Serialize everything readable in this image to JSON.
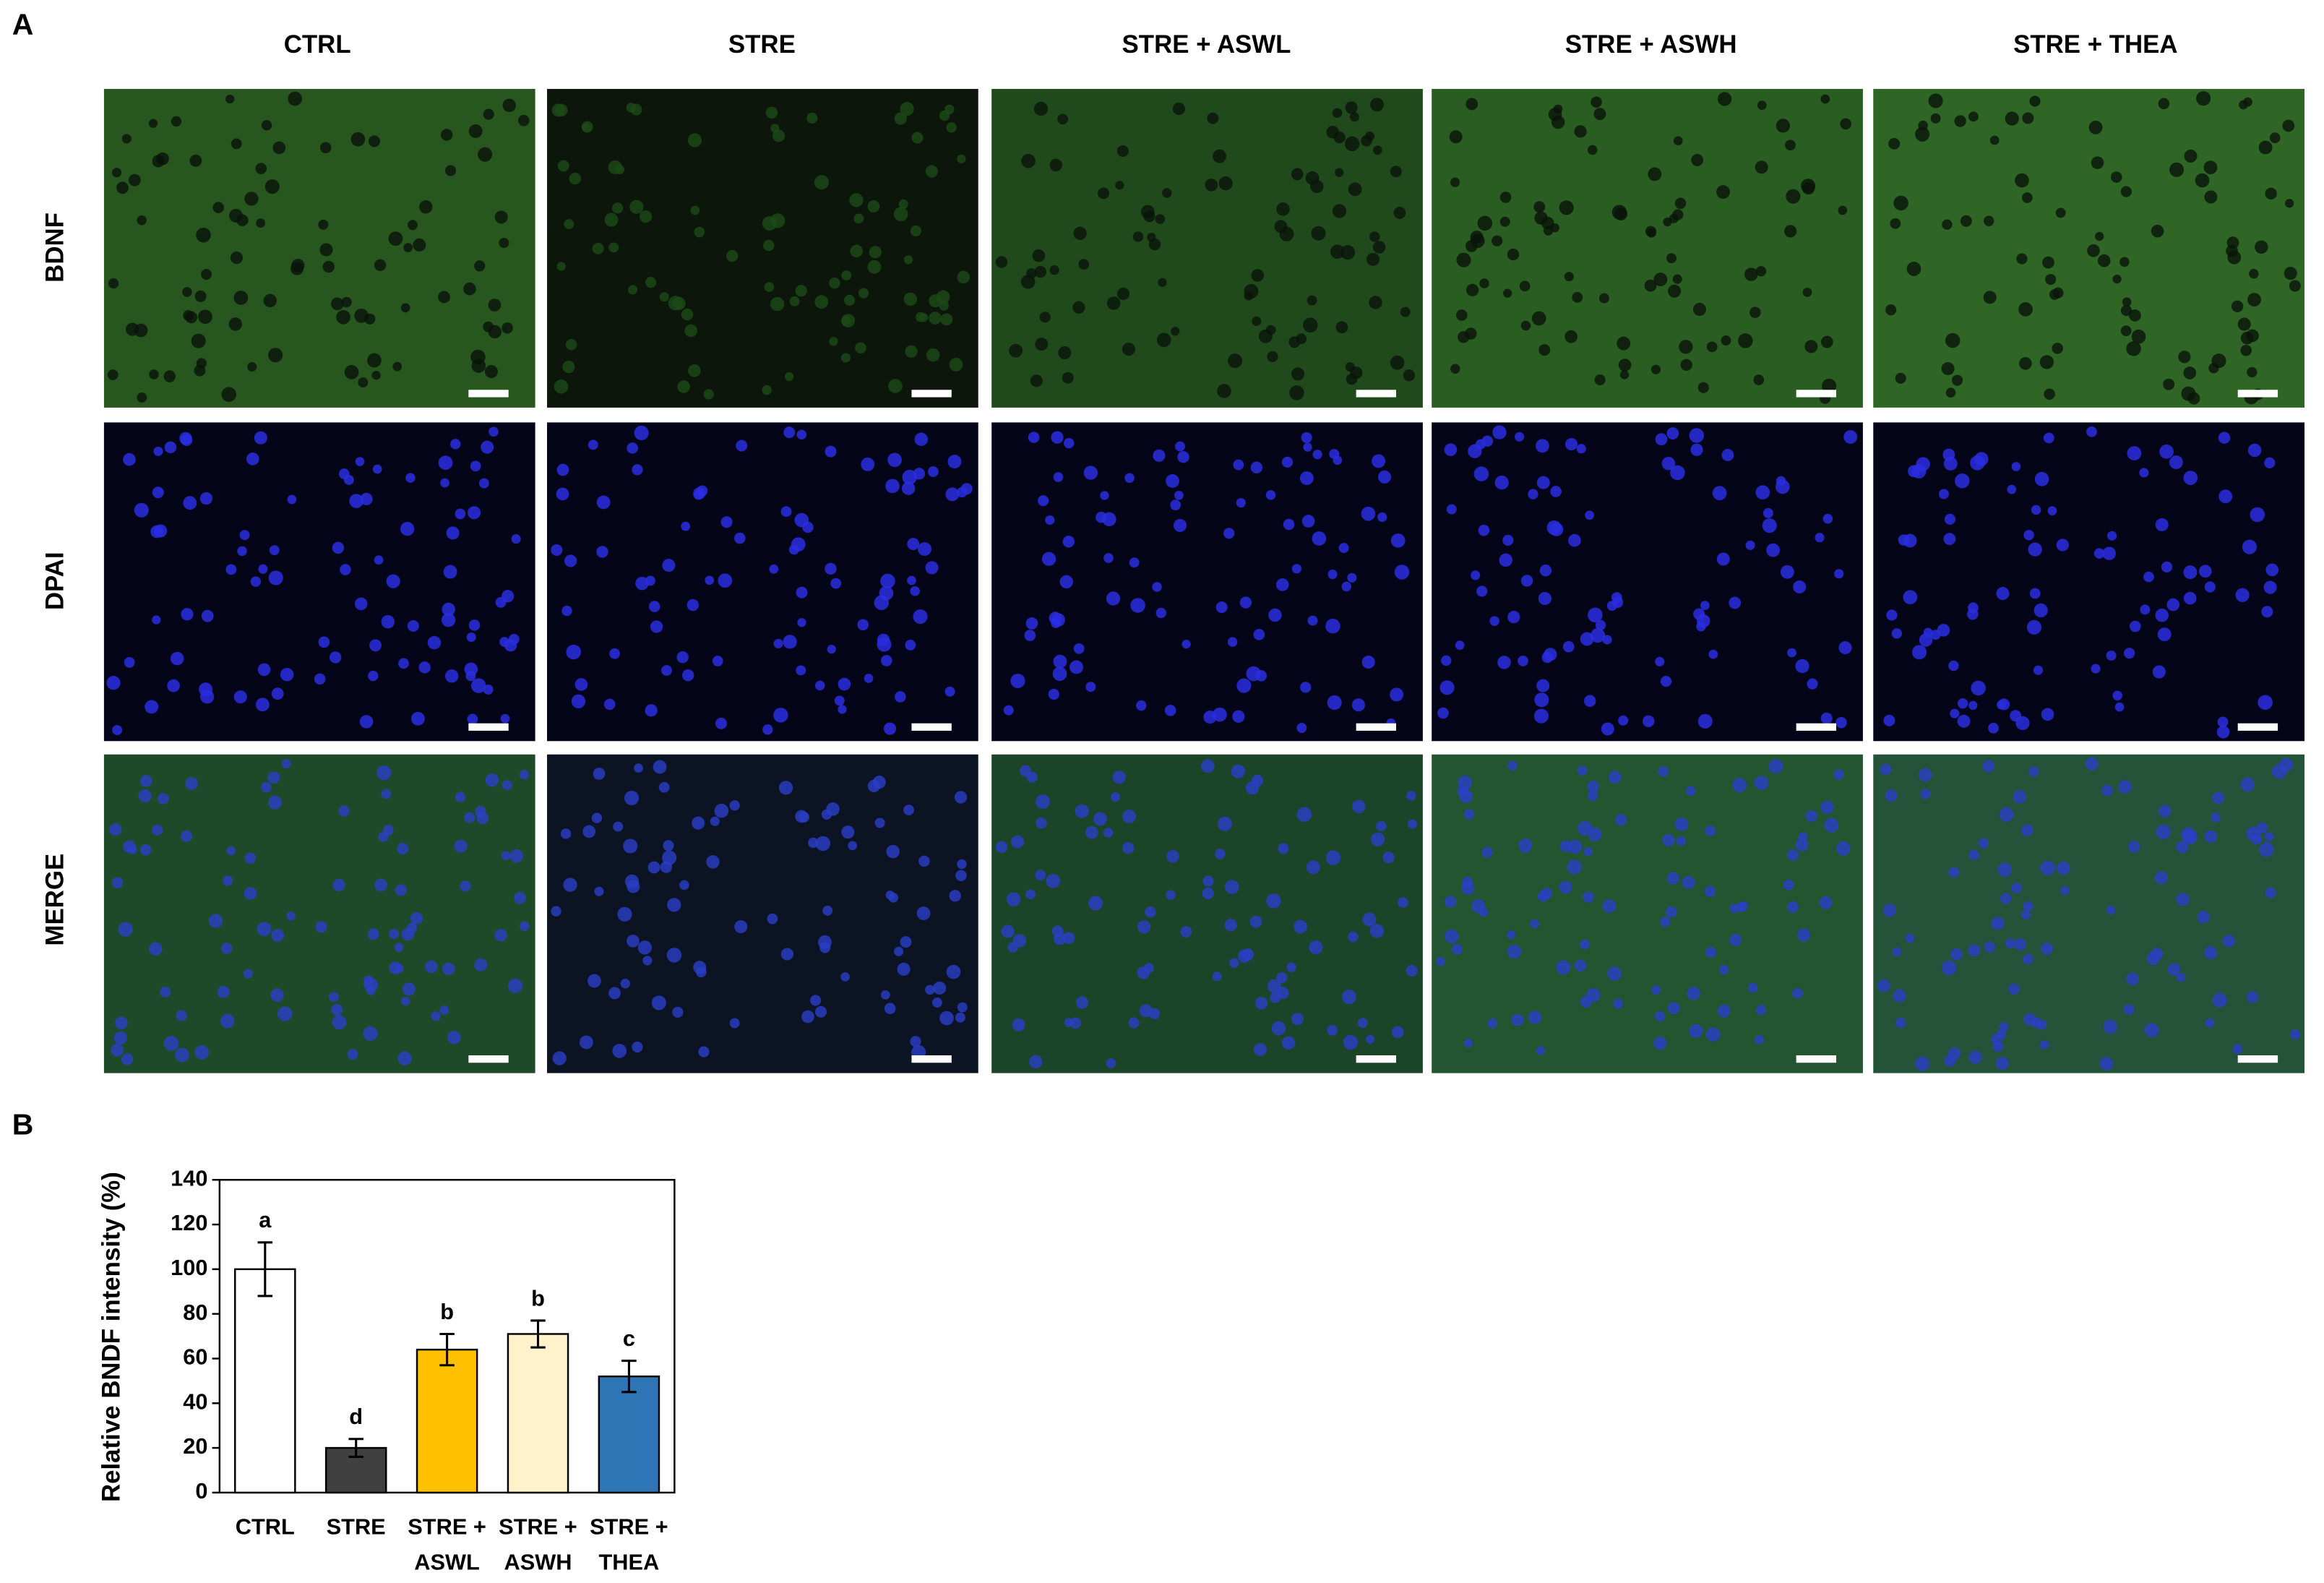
{
  "figure": {
    "panel_a_label": "A",
    "panel_b_label": "B",
    "columns": [
      "CTRL",
      "STRE",
      "STRE + ASWL",
      "STRE + ASWH",
      "STRE + THEA"
    ],
    "rows": [
      "BDNF",
      "DPAI",
      "MERGE"
    ]
  },
  "chart_data": {
    "type": "bar",
    "ylabel": "Relative BNDF intensity (%)",
    "categories": [
      "CTRL",
      "STRE",
      "STRE + ASWL",
      "STRE + ASWH",
      "STRE + THEA"
    ],
    "values": [
      100,
      20,
      64,
      71,
      52
    ],
    "errors": [
      12,
      4,
      7,
      6,
      7
    ],
    "letters": [
      "a",
      "d",
      "b",
      "b",
      "c"
    ],
    "colors": [
      "#ffffff",
      "#404040",
      "#ffc000",
      "#fff2cc",
      "#2e75b6"
    ],
    "ylim": [
      0,
      140
    ],
    "yticks": [
      0,
      20,
      40,
      60,
      80,
      100,
      120,
      140
    ]
  }
}
